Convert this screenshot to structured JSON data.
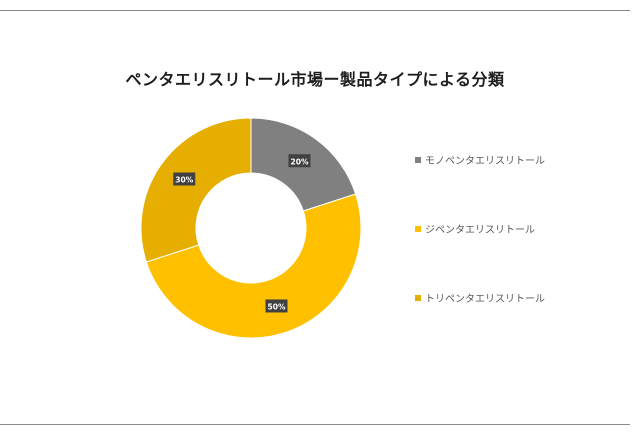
{
  "chart_data": {
    "type": "pie",
    "donut": true,
    "title": "ペンタエリスリトール市場ー製品タイプによる分類",
    "categories": [
      "モノペンタエリスリトール",
      "ジペンタエリスリトール",
      "トリペンタエリスリトール"
    ],
    "values": [
      20,
      50,
      30
    ],
    "data_labels": [
      "20%",
      "50%",
      "30%"
    ],
    "colors": [
      "#808080",
      "#FFC000",
      "#E6AE00"
    ],
    "legend_position": "right"
  }
}
